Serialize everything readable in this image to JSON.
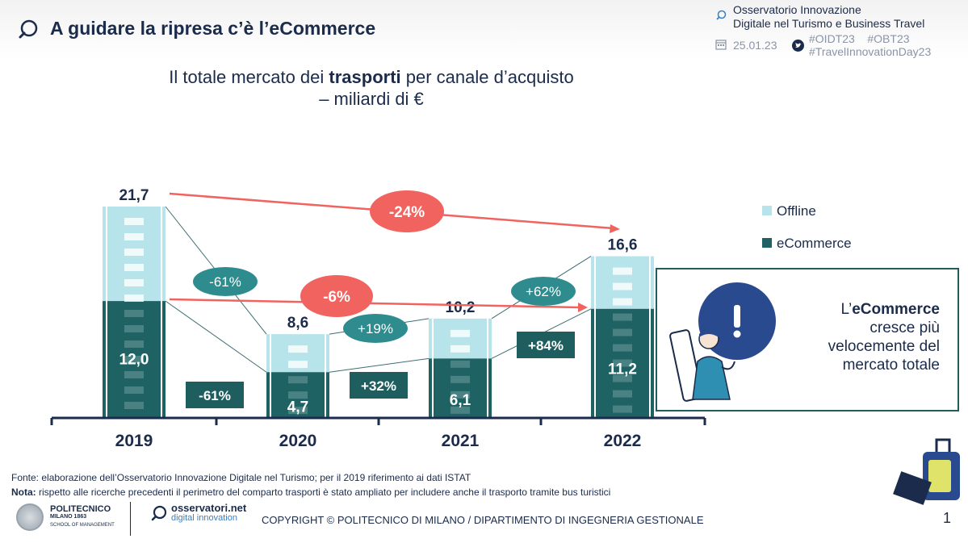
{
  "header": {
    "title": "A guidare la ripresa c’è l’eCommerce",
    "observatory_line1": "Osservatorio Innovazione",
    "observatory_line2": "Digitale nel Turismo e Business Travel",
    "date": "25.01.23",
    "tag1": "#OIDT23",
    "tag2": "#OBT23",
    "tag3": "#TravelInnovationDay23"
  },
  "subtitle": {
    "pre": "Il totale mercato dei ",
    "bold": "trasporti",
    "post": " per canale d’acquisto",
    "line2": "– miliardi di €"
  },
  "chart_data": {
    "type": "bar",
    "stacked": true,
    "categories": [
      "2019",
      "2020",
      "2021",
      "2022"
    ],
    "series": [
      {
        "name": "eCommerce",
        "color": "#1f6264",
        "values": [
          12.0,
          4.7,
          6.1,
          11.2
        ],
        "labels": [
          "12,0",
          "4,7",
          "6,1",
          "11,2"
        ]
      },
      {
        "name": "Offline",
        "color": "#b7e3ea",
        "values": [
          9.7,
          3.9,
          4.1,
          5.4
        ]
      }
    ],
    "totals": [
      21.7,
      8.6,
      10.2,
      16.6
    ],
    "total_labels": [
      "21,7",
      "8,6",
      "10,2",
      "16,6"
    ],
    "ylim": [
      0,
      24
    ],
    "legend": [
      "Offline",
      "eCommerce"
    ],
    "total_changes": [
      "-61%",
      "+19%",
      "+62%"
    ],
    "ecommerce_changes": [
      "-61%",
      "+32%",
      "+84%"
    ],
    "overall_total_change": "-24%",
    "overall_ecommerce_change": "-6%",
    "colors": {
      "accent_red": "#f0635f",
      "teal_bubble": "#2e8c8e",
      "dark_box": "#1f5e5e",
      "axis": "#1b2b4b"
    }
  },
  "callout": {
    "pre": "L’",
    "bold": "eCommerce",
    "rest1": "cresce più",
    "rest2": "velocemente del",
    "rest3": "mercato totale"
  },
  "footer": {
    "source": "Fonte: elaborazione dell’Osservatorio Innovazione Digitale nel Turismo; per il 2019 riferimento ai dati ISTAT",
    "note_label": "Nota:",
    "note_text": " rispetto alle ricerche precedenti il perimetro del comparto trasporti è stato ampliato per includere anche il trasporto tramite bus turistici",
    "poli_name": "POLITECNICO",
    "poli_sub1": "MILANO 1863",
    "poli_sub2": "SCHOOL OF MANAGEMENT",
    "oss_name": "osservatori.net",
    "oss_sub": "digital innovation",
    "copyright": "COPYRIGHT © POLITECNICO DI MILANO / DIPARTIMENTO DI INGEGNERIA GESTIONALE",
    "page": "1"
  }
}
